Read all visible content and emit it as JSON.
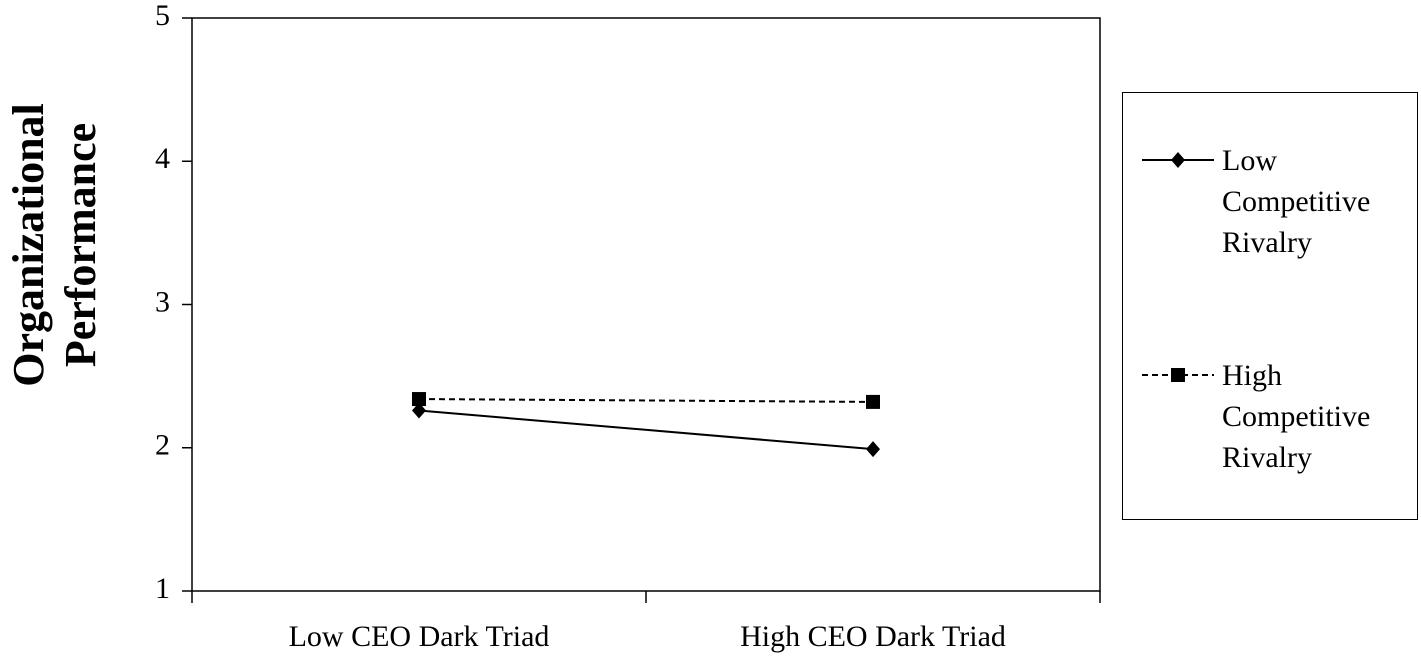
{
  "chart_data": {
    "type": "line",
    "y_label": "Organizational Performance",
    "categories": [
      "Low CEO Dark Triad",
      "High CEO Dark Triad"
    ],
    "series": [
      {
        "name": "Low Competitive Rivalry",
        "color": "#000000",
        "line_style": "solid",
        "marker": "diamond",
        "values": [
          2.26,
          1.99
        ]
      },
      {
        "name": "High Competitive Rivalry",
        "color": "#000000",
        "line_style": "dashed",
        "marker": "square",
        "values": [
          2.34,
          2.32
        ]
      }
    ],
    "ylim": [
      1,
      5
    ],
    "yticks": [
      1,
      2,
      3,
      4,
      5
    ],
    "grid": false,
    "legend": "right"
  }
}
